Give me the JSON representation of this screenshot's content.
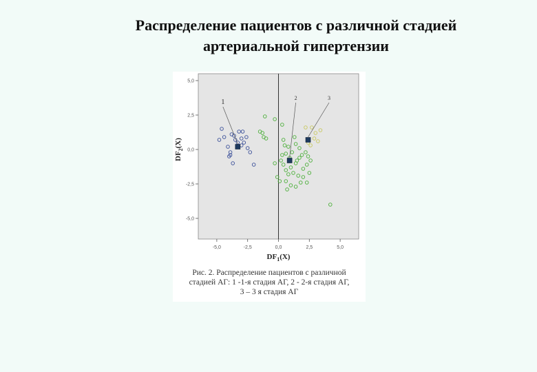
{
  "title": {
    "line1": "Распределение пациентов с различной стадией",
    "line2": "артериальной гипертензии"
  },
  "caption": {
    "line1": "Рис. 2. Распределение пациентов с различной",
    "line2": "стадией АГ: 1 -1-я стадия АГ, 2 - 2-я стадия АГ,",
    "line3": "3 – 3 я стадия АГ"
  },
  "colors": {
    "plot_bg": "#e5e5e5",
    "group1": "#3a4f99",
    "group2": "#4caf3a",
    "group3": "#c8c860",
    "centroid": "#1e3a5f"
  },
  "chart_data": {
    "type": "scatter",
    "xlabel": "DF1(X)",
    "ylabel": "DF2(X)",
    "xlim": [
      -6.5,
      6.5
    ],
    "ylim": [
      -6.5,
      5.5
    ],
    "x_ticks": [
      "-5,0",
      "-2,5",
      "0,0",
      "2,5",
      "5,0"
    ],
    "x_tick_values": [
      -5,
      -2.5,
      0,
      2.5,
      5
    ],
    "y_ticks": [
      "5,0",
      "2,5",
      "0,0",
      "-2,5",
      "-5,0"
    ],
    "y_tick_values": [
      5,
      2.5,
      0,
      -2.5,
      -5
    ],
    "grid": false,
    "series": [
      {
        "name": "1",
        "points": [
          [
            -4.6,
            1.5
          ],
          [
            -4.8,
            0.7
          ],
          [
            -4.4,
            0.9
          ],
          [
            -4.1,
            0.2
          ],
          [
            -3.9,
            -0.4
          ],
          [
            -4.0,
            -0.5
          ],
          [
            -3.7,
            -1.0
          ],
          [
            -3.8,
            1.1
          ],
          [
            -3.5,
            0.7
          ],
          [
            -3.2,
            1.3
          ],
          [
            -3.0,
            0.8
          ],
          [
            -2.8,
            0.5
          ],
          [
            -3.3,
            0.5
          ],
          [
            -2.6,
            0.9
          ],
          [
            -2.5,
            0.1
          ],
          [
            -3.0,
            0.3
          ],
          [
            -2.9,
            1.3
          ],
          [
            -3.6,
            1.0
          ],
          [
            -2.3,
            -0.2
          ],
          [
            -2.0,
            -1.1
          ],
          [
            -3.9,
            -0.2
          ]
        ]
      },
      {
        "name": "2",
        "points": [
          [
            -1.1,
            2.4
          ],
          [
            -1.3,
            1.2
          ],
          [
            -1.5,
            1.3
          ],
          [
            -1.2,
            0.9
          ],
          [
            -1.0,
            0.8
          ],
          [
            -0.3,
            2.2
          ],
          [
            0.3,
            1.8
          ],
          [
            0.4,
            0.7
          ],
          [
            0.5,
            0.3
          ],
          [
            0.8,
            0.2
          ],
          [
            0.6,
            -0.3
          ],
          [
            0.9,
            -0.6
          ],
          [
            0.4,
            -1.1
          ],
          [
            0.2,
            -0.8
          ],
          [
            0.6,
            -1.5
          ],
          [
            1.0,
            -1.3
          ],
          [
            1.4,
            -1.0
          ],
          [
            1.1,
            -0.2
          ],
          [
            1.4,
            0.4
          ],
          [
            1.7,
            0.1
          ],
          [
            1.9,
            -0.4
          ],
          [
            1.5,
            -0.8
          ],
          [
            1.2,
            -1.7
          ],
          [
            1.6,
            -1.9
          ],
          [
            2.0,
            -1.4
          ],
          [
            2.3,
            -1.1
          ],
          [
            2.4,
            -0.5
          ],
          [
            2.2,
            -0.2
          ],
          [
            2.6,
            -0.8
          ],
          [
            2.0,
            -2.0
          ],
          [
            1.8,
            -2.4
          ],
          [
            1.4,
            -2.7
          ],
          [
            1.0,
            -2.6
          ],
          [
            0.7,
            -2.9
          ],
          [
            2.5,
            -1.7
          ],
          [
            0.1,
            -2.3
          ],
          [
            -0.3,
            -1.0
          ],
          [
            0.3,
            -0.4
          ],
          [
            1.3,
            0.9
          ],
          [
            2.3,
            -2.4
          ],
          [
            0.8,
            -1.8
          ],
          [
            -0.1,
            -2.0
          ],
          [
            4.2,
            -4.0
          ],
          [
            1.7,
            -0.6
          ],
          [
            0.6,
            -2.3
          ]
        ]
      },
      {
        "name": "3",
        "points": [
          [
            2.2,
            1.6
          ],
          [
            2.7,
            1.6
          ],
          [
            2.9,
            0.8
          ],
          [
            2.4,
            0.5
          ],
          [
            3.0,
            1.2
          ],
          [
            2.6,
            0.3
          ],
          [
            3.2,
            0.6
          ],
          [
            3.4,
            1.4
          ]
        ]
      }
    ],
    "centroids": [
      {
        "group": "1",
        "x": -3.3,
        "y": 0.2
      },
      {
        "group": "2",
        "x": 0.9,
        "y": -0.8
      },
      {
        "group": "3",
        "x": 2.4,
        "y": 0.7
      }
    ],
    "annotations": [
      {
        "text": "1",
        "x": -4.5,
        "y": 3.3,
        "target_x": -3.3,
        "target_y": 0.2
      },
      {
        "text": "2",
        "x": 1.4,
        "y": 3.6,
        "target_x": 0.9,
        "target_y": -0.8
      },
      {
        "text": "3",
        "x": 4.1,
        "y": 3.6,
        "target_x": 2.4,
        "target_y": 0.7
      }
    ]
  }
}
